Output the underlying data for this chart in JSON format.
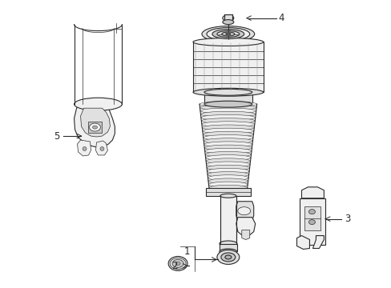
{
  "bg_color": "#ffffff",
  "line_color": "#2a2a2a",
  "fill_light": "#f0f0f0",
  "fill_mid": "#e0e0e0",
  "fill_dark": "#c8c8c8",
  "fill_darker": "#b0b0b0",
  "fig_width": 4.89,
  "fig_height": 3.6,
  "dpi": 100
}
